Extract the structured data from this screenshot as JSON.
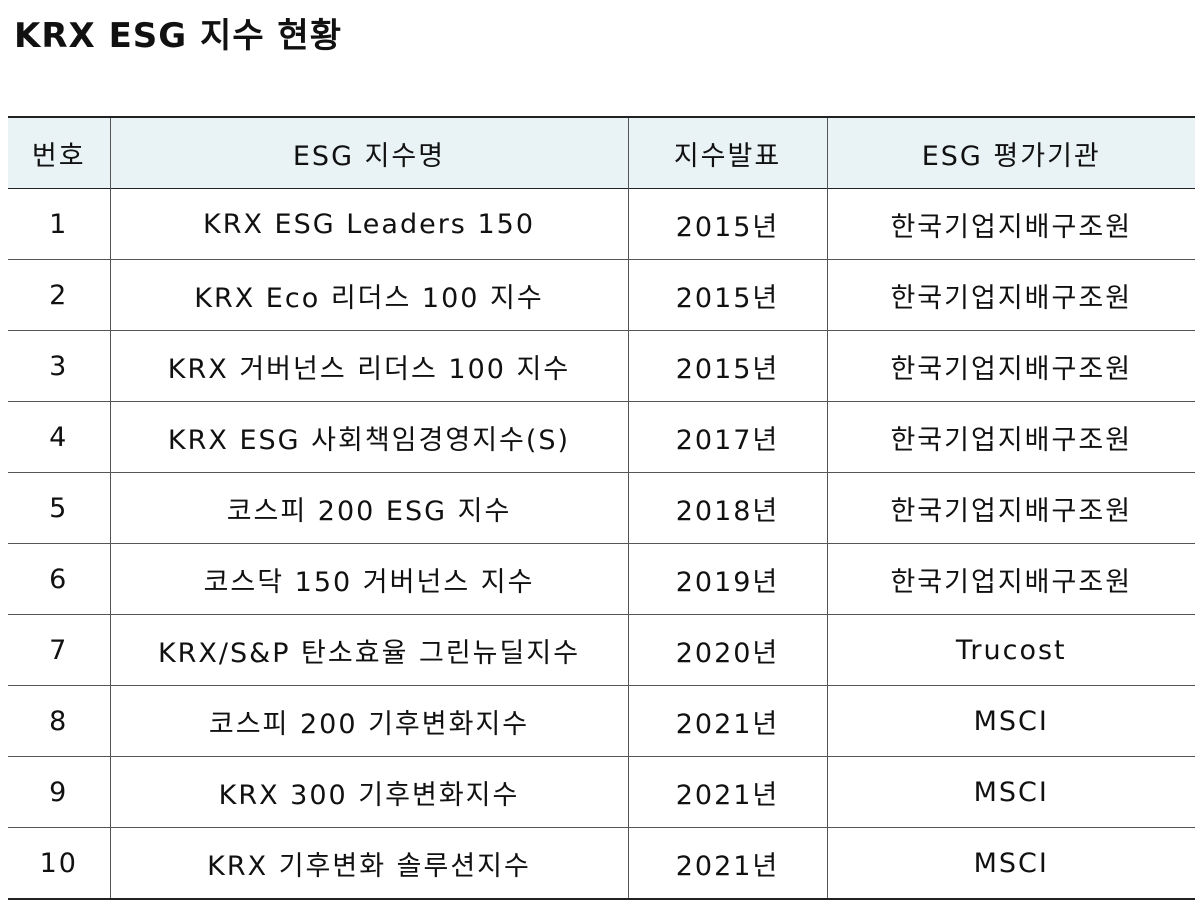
{
  "header": {
    "title": "KRX ESG 지수 현황"
  },
  "table": {
    "columns": [
      "번호",
      "ESG 지수명",
      "지수발표",
      "ESG 평가기관"
    ],
    "rows": [
      [
        "1",
        "KRX ESG Leaders 150",
        "2015년",
        "한국기업지배구조원"
      ],
      [
        "2",
        "KRX Eco 리더스 100 지수",
        "2015년",
        "한국기업지배구조원"
      ],
      [
        "3",
        "KRX 거버넌스 리더스 100 지수",
        "2015년",
        "한국기업지배구조원"
      ],
      [
        "4",
        "KRX ESG 사회책임경영지수(S)",
        "2017년",
        "한국기업지배구조원"
      ],
      [
        "5",
        "코스피 200 ESG 지수",
        "2018년",
        "한국기업지배구조원"
      ],
      [
        "6",
        "코스닥 150 거버넌스 지수",
        "2019년",
        "한국기업지배구조원"
      ],
      [
        "7",
        "KRX/S&P 탄소효율 그린뉴딜지수",
        "2020년",
        "Trucost"
      ],
      [
        "8",
        "코스피 200 기후변화지수",
        "2021년",
        "MSCI"
      ],
      [
        "9",
        "KRX 300 기후변화지수",
        "2021년",
        "MSCI"
      ],
      [
        "10",
        "KRX 기후변화 솔루션지수",
        "2021년",
        "MSCI"
      ]
    ]
  }
}
